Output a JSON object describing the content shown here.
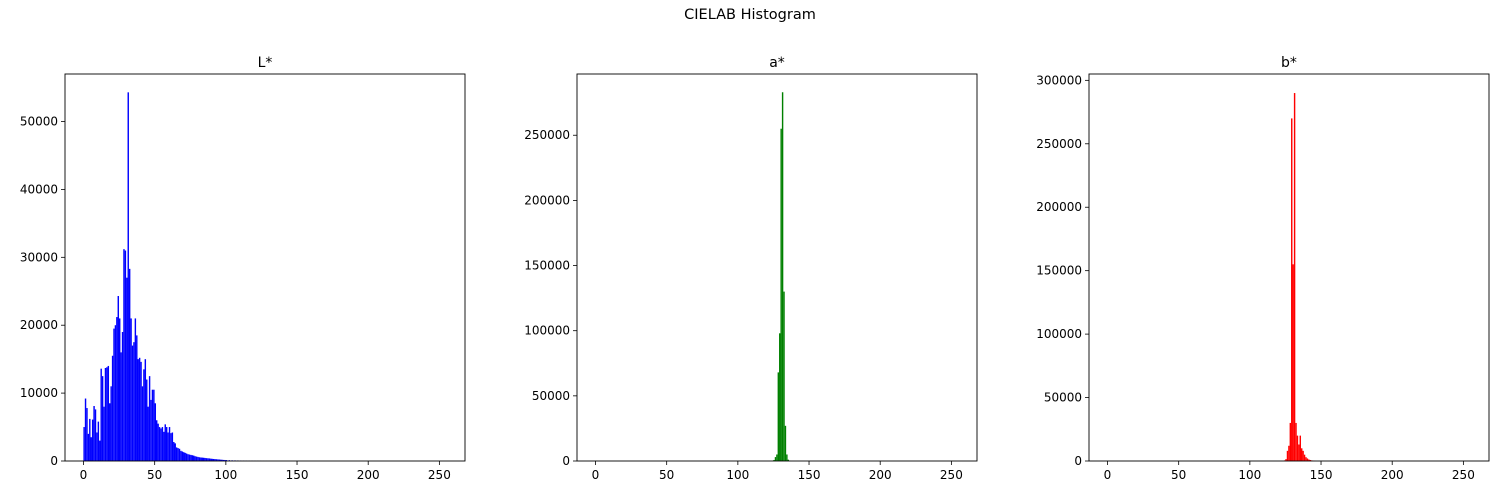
{
  "figure": {
    "title": "CIELAB Histogram"
  },
  "chart_data": [
    {
      "type": "bar",
      "title": "L*",
      "color": "#0000ff",
      "xlim": [
        -13,
        268
      ],
      "ylim": [
        0,
        57000
      ],
      "xticks": [
        0,
        50,
        100,
        150,
        200,
        250
      ],
      "yticks": [
        0,
        10000,
        20000,
        30000,
        40000,
        50000
      ],
      "bins_x": [
        0,
        1,
        2,
        3,
        4,
        5,
        6,
        7,
        8,
        9,
        10,
        11,
        12,
        13,
        14,
        15,
        16,
        17,
        18,
        19,
        20,
        21,
        22,
        23,
        24,
        25,
        26,
        27,
        28,
        29,
        30,
        31,
        32,
        33,
        34,
        35,
        36,
        37,
        38,
        39,
        40,
        41,
        42,
        43,
        44,
        45,
        46,
        47,
        48,
        49,
        50,
        51,
        52,
        53,
        54,
        55,
        56,
        57,
        58,
        59,
        60,
        61,
        62,
        63,
        64,
        65,
        66,
        67,
        68,
        69,
        70,
        71,
        72,
        73,
        74,
        75,
        76,
        77,
        78,
        79,
        80,
        81,
        82,
        83,
        84,
        85,
        86,
        87,
        88,
        89,
        90,
        91,
        92,
        93,
        94,
        95,
        96,
        97,
        98,
        99,
        100,
        102,
        104,
        106,
        108,
        110,
        112,
        114,
        116,
        118,
        120,
        122,
        124,
        126,
        128,
        130,
        132,
        134,
        136,
        140,
        150,
        160,
        170,
        180,
        190,
        200,
        210,
        220,
        230,
        240,
        250
      ],
      "values": [
        5000,
        9200,
        7800,
        4000,
        6200,
        3500,
        6100,
        8100,
        7600,
        4200,
        5800,
        3000,
        13600,
        12500,
        8000,
        13700,
        13800,
        14000,
        8500,
        11000,
        15500,
        19500,
        20000,
        21200,
        24300,
        21000,
        16000,
        19000,
        31200,
        31000,
        27000,
        54300,
        28300,
        21000,
        17000,
        17500,
        21000,
        18500,
        15000,
        15200,
        14600,
        11000,
        13500,
        15000,
        12000,
        8000,
        12500,
        9000,
        10500,
        10500,
        8500,
        6000,
        5500,
        5000,
        4800,
        5000,
        4300,
        5400,
        5000,
        4200,
        5000,
        4100,
        4200,
        2800,
        2600,
        2000,
        1900,
        1800,
        1500,
        1400,
        1300,
        1200,
        1100,
        1000,
        950,
        900,
        850,
        800,
        700,
        650,
        600,
        550,
        520,
        500,
        480,
        450,
        420,
        400,
        380,
        350,
        320,
        300,
        280,
        260,
        240,
        220,
        200,
        180,
        160,
        150,
        140,
        120,
        100,
        90,
        80,
        70,
        60,
        50,
        40,
        35,
        30,
        25,
        20,
        15,
        10,
        8,
        5,
        4,
        3,
        2,
        1,
        1,
        0,
        0,
        0,
        0,
        0,
        0,
        0,
        0,
        0,
        0
      ]
    },
    {
      "type": "bar",
      "title": "a*",
      "color": "#008000",
      "xlim": [
        -13,
        268
      ],
      "ylim": [
        0,
        297000
      ],
      "xticks": [
        0,
        50,
        100,
        150,
        200,
        250
      ],
      "yticks": [
        0,
        50000,
        100000,
        150000,
        200000,
        250000
      ],
      "bins_x": [
        0,
        50,
        100,
        120,
        124,
        125,
        126,
        127,
        128,
        129,
        130,
        131,
        132,
        133,
        134,
        135,
        136,
        140,
        150,
        200,
        250
      ],
      "values": [
        0,
        0,
        0,
        0,
        200,
        800,
        3000,
        5000,
        68000,
        98000,
        255000,
        283000,
        130000,
        27000,
        5000,
        1000,
        200,
        0,
        0,
        0,
        0
      ]
    },
    {
      "type": "bar",
      "title": "b*",
      "color": "#ff0000",
      "xlim": [
        -13,
        268
      ],
      "ylim": [
        0,
        305000
      ],
      "xticks": [
        0,
        50,
        100,
        150,
        200,
        250
      ],
      "yticks": [
        0,
        50000,
        100000,
        150000,
        200000,
        250000,
        300000
      ],
      "bins_x": [
        0,
        50,
        100,
        120,
        124,
        125,
        126,
        127,
        128,
        129,
        130,
        131,
        132,
        133,
        134,
        135,
        136,
        137,
        138,
        139,
        140,
        141,
        142,
        143,
        144,
        145,
        150,
        200,
        250
      ],
      "values": [
        0,
        0,
        0,
        0,
        500,
        1500,
        8000,
        12000,
        30000,
        270000,
        155000,
        290000,
        30000,
        20000,
        13000,
        20000,
        10000,
        8000,
        5000,
        3000,
        2000,
        1200,
        800,
        500,
        300,
        200,
        0,
        0,
        0
      ]
    }
  ]
}
